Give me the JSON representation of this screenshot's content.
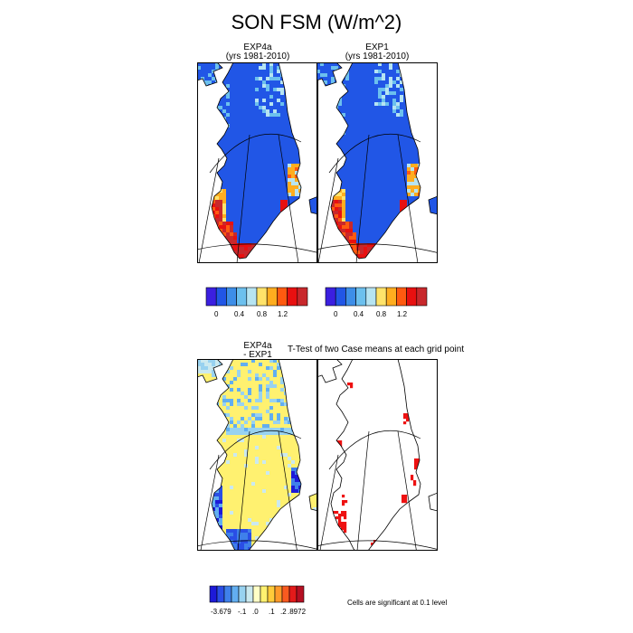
{
  "figure": {
    "title": "SON FSM (W/m^2)",
    "ttest_title": "T-Test of two Case means at each grid point",
    "significance_note": "Cells are significant at 0.1 level"
  },
  "panels": {
    "exp4a": {
      "title_line1": "EXP4a",
      "title_line2": "(yrs 1981-2010)"
    },
    "exp1": {
      "title_line1": "EXP1",
      "title_line2": "(yrs 1981-2010)"
    },
    "diff": {
      "title_line1": "EXP4a",
      "title_line2": "- EXP1"
    }
  },
  "colors": {
    "ocean": "#ffffff",
    "border": "#000000",
    "significant": "#ee1111",
    "fsm_palette": [
      "#3b1fe0",
      "#2156e6",
      "#3d8ee8",
      "#6cc0ee",
      "#b6e4f2",
      "#ffe36a",
      "#ffad1f",
      "#ff5a10",
      "#e81010",
      "#c8282c"
    ],
    "diff_palette": [
      "#1d1ad8",
      "#2a4ee6",
      "#3f80ea",
      "#62aef0",
      "#98d2f0",
      "#cbe9ef",
      "#ffffc6",
      "#fff170",
      "#ffcb3a",
      "#ff9a2a",
      "#f95a20",
      "#e31a1a",
      "#b50f22"
    ]
  },
  "legend_fsm": {
    "labels": [
      "0",
      "0.4",
      "0.8",
      "1.2"
    ]
  },
  "legend_diff": {
    "labels": [
      "-3.679",
      "-.1",
      ".0",
      ".1",
      ".2",
      ".8972"
    ]
  },
  "map": {
    "projection": "polar stereographic",
    "region": "Greenland",
    "graticule": "on"
  }
}
